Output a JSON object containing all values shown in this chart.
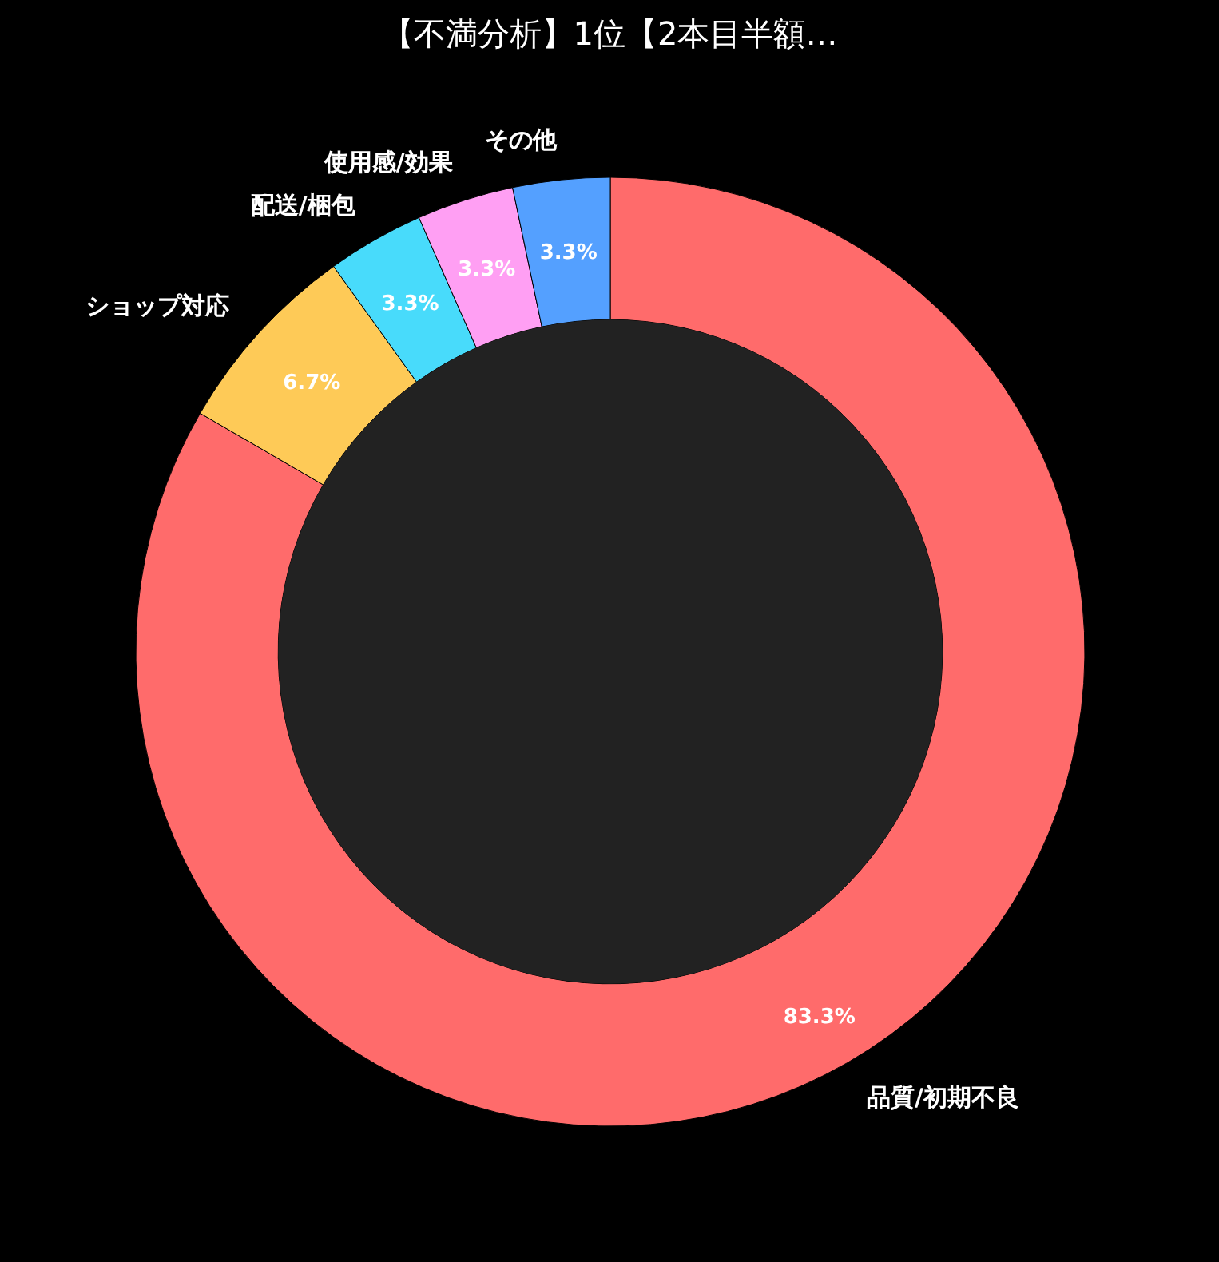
{
  "chart_data": {
    "type": "donut",
    "title": "【不満分析】1位【2本目半額…",
    "categories": [
      "品質/初期不良",
      "ショップ対応",
      "配送/梱包",
      "使用感/効果",
      "その他"
    ],
    "values": [
      83.3,
      6.7,
      3.3,
      3.3,
      3.3
    ],
    "colors": [
      "#ff6b6b",
      "#feca57",
      "#48dbfb",
      "#ff9ff3",
      "#54a0ff"
    ],
    "value_labels": [
      "83.3%",
      "6.7%",
      "3.3%",
      "3.3%",
      "3.3%"
    ],
    "legend": false
  }
}
